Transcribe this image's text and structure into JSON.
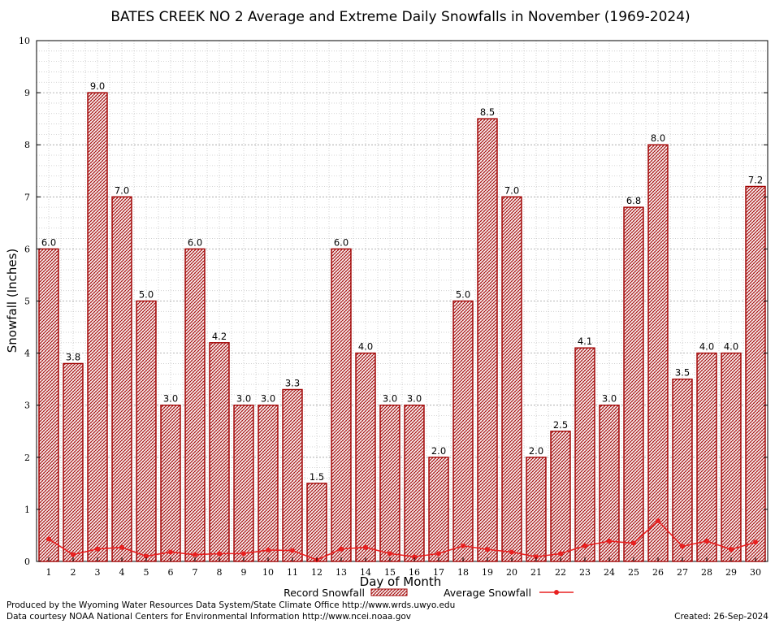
{
  "chart_data": {
    "type": "bar",
    "title": "BATES CREEK NO 2 Average and Extreme Daily Snowfalls in November (1969-2024)",
    "xlabel": "Day of Month",
    "ylabel": "Snowfall (Inches)",
    "ylim": [
      0,
      10
    ],
    "yticks": [
      "0",
      "1",
      "2",
      "3",
      "4",
      "5",
      "6",
      "7",
      "8",
      "9",
      "10"
    ],
    "grid": true,
    "legend_position": "bottom",
    "categories": [
      "1",
      "2",
      "3",
      "4",
      "5",
      "6",
      "7",
      "8",
      "9",
      "10",
      "11",
      "12",
      "13",
      "14",
      "15",
      "16",
      "17",
      "18",
      "19",
      "20",
      "21",
      "22",
      "23",
      "24",
      "25",
      "26",
      "27",
      "28",
      "29",
      "30"
    ],
    "series": [
      {
        "name": "Record Snowfall",
        "kind": "bar",
        "color": "#a00000",
        "values": [
          6.0,
          3.8,
          9.0,
          7.0,
          5.0,
          3.0,
          6.0,
          4.2,
          3.0,
          3.0,
          3.3,
          1.5,
          6.0,
          4.0,
          3.0,
          3.0,
          2.0,
          5.0,
          8.5,
          7.0,
          2.0,
          2.5,
          4.1,
          3.0,
          6.8,
          8.0,
          3.5,
          4.0,
          4.0,
          7.2
        ],
        "labels": [
          "6.0",
          "3.8",
          "9.0",
          "7.0",
          "5.0",
          "3.0",
          "6.0",
          "4.2",
          "3.0",
          "3.0",
          "3.3",
          "1.5",
          "6.0",
          "4.0",
          "3.0",
          "3.0",
          "2.0",
          "5.0",
          "8.5",
          "7.0",
          "2.0",
          "2.5",
          "4.1",
          "3.0",
          "6.8",
          "8.0",
          "3.5",
          "4.0",
          "4.0",
          "7.2"
        ]
      },
      {
        "name": "Average Snowfall",
        "kind": "line",
        "color": "#e82020",
        "values": [
          0.43,
          0.13,
          0.24,
          0.27,
          0.1,
          0.18,
          0.13,
          0.15,
          0.15,
          0.22,
          0.21,
          0.03,
          0.24,
          0.27,
          0.15,
          0.09,
          0.15,
          0.3,
          0.23,
          0.18,
          0.09,
          0.15,
          0.3,
          0.39,
          0.35,
          0.78,
          0.29,
          0.39,
          0.23,
          0.37
        ]
      }
    ]
  },
  "footer": {
    "produced_by": "Produced by the Wyoming Water Resources Data System/State Climate Office http://www.wrds.uwyo.edu",
    "courtesy": "Data courtesy NOAA National Centers for Environmental Information http://www.ncei.noaa.gov",
    "created": "Created:  26-Sep-2024"
  }
}
